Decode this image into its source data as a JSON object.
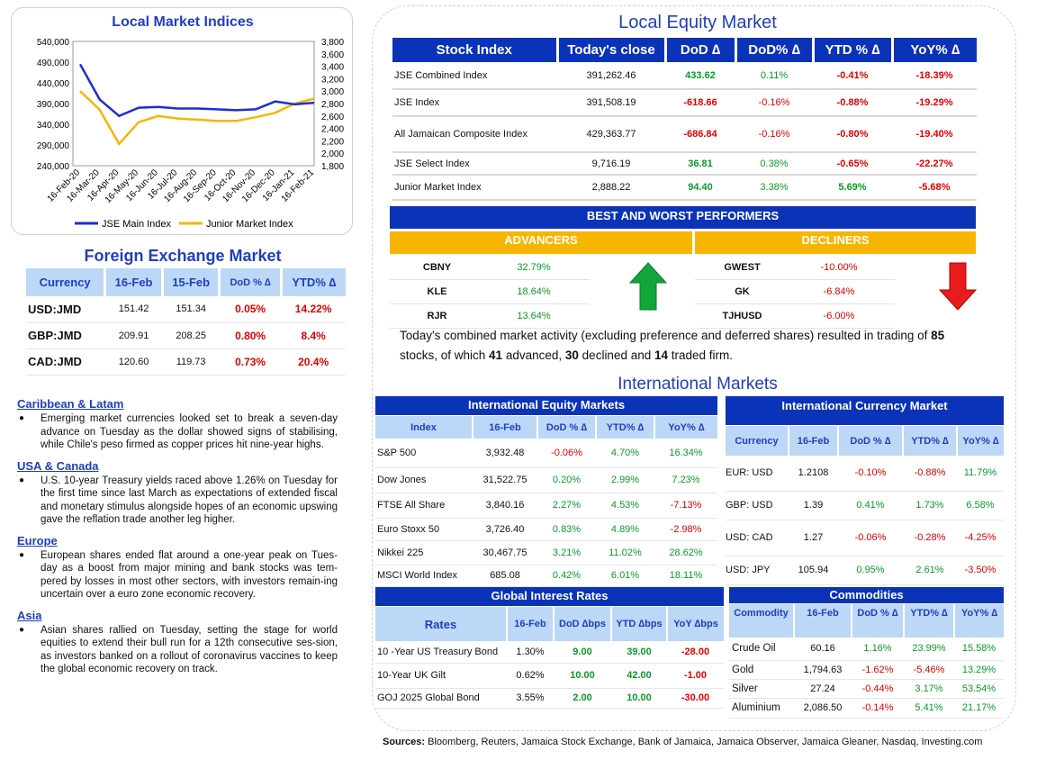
{
  "local_indices": {
    "title": "Local Market Indices",
    "left_axis": [
      "540,000",
      "490,000",
      "440,000",
      "390,000",
      "340,000",
      "290,000",
      "240,000"
    ],
    "right_axis": [
      "3,800",
      "3,600",
      "3,400",
      "3,200",
      "3,000",
      "2,800",
      "2,600",
      "2,400",
      "2,200",
      "2,000",
      "1,800"
    ],
    "x_labels": [
      "16-Feb-20",
      "16-Mar-20",
      "16-Apr-20",
      "16-May-20",
      "16-Jun-20",
      "16-Jul-20",
      "16-Aug-20",
      "16-Sep-20",
      "16-Oct-20",
      "16-Nov-20",
      "16-Dec-20",
      "16-Jan-21",
      "16-Feb-21"
    ],
    "legend_main": "JSE Main Index",
    "legend_junior": "Junior Market Index",
    "color_main": "#1a2fd6",
    "color_junior": "#f7b500"
  },
  "chart_data": {
    "type": "line",
    "x": [
      "16-Feb-20",
      "16-Mar-20",
      "16-Apr-20",
      "16-May-20",
      "16-Jun-20",
      "16-Jul-20",
      "16-Aug-20",
      "16-Sep-20",
      "16-Oct-20",
      "16-Nov-20",
      "16-Dec-20",
      "16-Jan-21",
      "16-Feb-21"
    ],
    "series": [
      {
        "name": "JSE Main Index",
        "axis": "left",
        "values": [
          485000,
          400000,
          360000,
          380000,
          382000,
          378000,
          378000,
          376000,
          374000,
          376000,
          395000,
          388000,
          392000
        ]
      },
      {
        "name": "Junior Market Index",
        "axis": "right",
        "values": [
          3000,
          2700,
          2150,
          2500,
          2600,
          2560,
          2540,
          2520,
          2520,
          2580,
          2650,
          2800,
          2880
        ]
      }
    ],
    "ylim_left": [
      240000,
      540000
    ],
    "ylim_right": [
      1800,
      3800
    ]
  },
  "fx": {
    "title": "Foreign Exchange Market",
    "headers": [
      "Currency",
      "16-Feb",
      "15-Feb",
      "DoD % ∆",
      "YTD% ∆"
    ],
    "rows": [
      [
        "USD:JMD",
        "151.42",
        "151.34",
        "0.05%",
        "14.22%"
      ],
      [
        "GBP:JMD",
        "209.91",
        "208.25",
        "0.80%",
        "8.4%"
      ],
      [
        "CAD:JMD",
        "120.60",
        "119.73",
        "0.73%",
        "20.4%"
      ]
    ]
  },
  "news": [
    {
      "heading": "Caribbean & Latam",
      "text": "Emerging market currencies looked set to break a seven-day advance on Tuesday as the dollar showed signs of stabilising, while Chile's peso firmed as copper prices hit nine-year highs."
    },
    {
      "heading": "USA & Canada",
      "text": "U.S. 10-year Treasury yields raced above 1.26% on Tuesday for the first time since last March as expectations of extended fiscal and monetary stimulus alongside hopes of an economic upswing gave the reflation trade another leg higher."
    },
    {
      "heading": "Europe",
      "text": "European shares ended flat around a one-year peak on Tues-day as a boost from major mining and bank stocks was tem-pered by losses in most other sectors, with investors remain-ing uncertain over a euro zone economic recovery."
    },
    {
      "heading": "Asia",
      "text": "Asian shares rallied on Tuesday, setting the stage for world equities to extend their bull run for a 12th consecutive ses-sion, as investors banked on a rollout of coronavirus vaccines to keep the global economic recovery on track."
    }
  ],
  "local_equity": {
    "title": "Local Equity Market",
    "headers": [
      "Stock Index",
      "Today's close",
      "DoD  ∆",
      "DoD% ∆",
      "YTD % ∆",
      "YoY% ∆"
    ],
    "rows": [
      [
        "JSE Combined Index",
        "391,262.46",
        "433.62",
        "0.11%",
        "-0.41%",
        "-18.39%"
      ],
      [
        "JSE Index",
        "391,508.19",
        "-618.66",
        "-0.16%",
        "-0.88%",
        "-19.29%"
      ],
      [
        "All Jamaican Composite Index",
        "429,363.77",
        "-686.84",
        "-0.16%",
        "-0.80%",
        "-19.40%"
      ],
      [
        "JSE Select Index",
        "9,716.19",
        "36.81",
        "0.38%",
        "-0.65%",
        "-22.27%"
      ],
      [
        "Junior Market Index",
        "2,888.22",
        "94.40",
        "3.38%",
        "5.69%",
        "-5.68%"
      ]
    ]
  },
  "performers": {
    "title": "BEST AND WORST PERFORMERS",
    "advancers_label": "ADVANCERS",
    "decliners_label": "DECLINERS",
    "advancers": [
      [
        "CBNY",
        "32.79%"
      ],
      [
        "KLE",
        "18.64%"
      ],
      [
        "RJR",
        "13.64%"
      ]
    ],
    "decliners": [
      [
        "GWEST",
        "-10.00%"
      ],
      [
        "GK",
        "-6.84%"
      ],
      [
        "TJHUSD",
        "-6.00%"
      ]
    ],
    "up_icon": "up-arrow-icon",
    "down_icon": "down-arrow-icon"
  },
  "summary": {
    "p1": "Today's combined market activity (excluding preference and deferred shares) resulted in trading of ",
    "n1": "85",
    "p2": " stocks, of which ",
    "n2": "41",
    "p3": " advanced, ",
    "n3": "30",
    "p4": " declined and ",
    "n4": "14",
    "p5": " traded firm."
  },
  "intl_title": "International Markets",
  "intl_equity": {
    "title": "International Equity Markets",
    "headers": [
      "Index",
      "16-Feb",
      "DoD % ∆",
      "YTD% ∆",
      "YoY% ∆"
    ],
    "rows": [
      [
        "S&P 500",
        "3,932.48",
        "-0.06%",
        "4.70%",
        "16.34%"
      ],
      [
        "Dow Jones",
        "31,522.75",
        "0.20%",
        "2.99%",
        "7.23%"
      ],
      [
        "FTSE All Share",
        "3,840.16",
        "2.27%",
        "4.53%",
        "-7.13%"
      ],
      [
        "Euro Stoxx 50",
        "3,726.40",
        "0.83%",
        "4.89%",
        "-2.98%"
      ],
      [
        "Nikkei 225",
        "30,467.75",
        "3.21%",
        "11.02%",
        "28.62%"
      ],
      [
        "MSCI World Index",
        "685.08",
        "0.42%",
        "6.01%",
        "18.11%"
      ]
    ]
  },
  "intl_currency": {
    "title": "International Currency Market",
    "headers": [
      "Currency",
      "16-Feb",
      "DoD % ∆",
      "YTD% ∆",
      "YoY% ∆"
    ],
    "rows": [
      [
        "EUR: USD",
        "1.2108",
        "-0.10%",
        "-0.88%",
        "11.79%"
      ],
      [
        "GBP: USD",
        "1.39",
        "0.41%",
        "1.73%",
        "6.58%"
      ],
      [
        "USD: CAD",
        "1.27",
        "-0.06%",
        "-0.28%",
        "-4.25%"
      ],
      [
        "USD: JPY",
        "105.94",
        "0.95%",
        "2.61%",
        "-3.50%"
      ]
    ]
  },
  "rates": {
    "title": "Global Interest Rates",
    "headers": [
      "Rates",
      "16-Feb",
      "DoD ∆bps",
      "YTD ∆bps",
      "YoY ∆bps"
    ],
    "rows": [
      [
        "10 -Year US Treasury Bond",
        "1.30%",
        "9.00",
        "39.00",
        "-28.00"
      ],
      [
        "10-Year UK Gilt",
        "0.62%",
        "10.00",
        "42.00",
        "-1.00"
      ],
      [
        "GOJ 2025 Global Bond",
        "3.55%",
        "2.00",
        "10.00",
        "-30.00"
      ]
    ]
  },
  "commodities": {
    "title": "Commodities",
    "headers": [
      "Commodity",
      "16-Feb",
      "DoD % ∆",
      "YTD% ∆",
      "YoY% ∆"
    ],
    "rows": [
      [
        "Crude Oil",
        "60.16",
        "1.16%",
        "23.99%",
        "15.58%"
      ],
      [
        "Gold",
        "1,794.63",
        "-1.62%",
        "-5.46%",
        "13.29%"
      ],
      [
        "Silver",
        "27.24",
        "-0.44%",
        "3.17%",
        "53.54%"
      ],
      [
        "Aluminium",
        "2,086.50",
        "-0.14%",
        "5.41%",
        "21.17%"
      ]
    ]
  },
  "sources": {
    "label": "Sources:",
    "text": " Bloomberg, Reuters, Jamaica Stock Exchange, Bank of Jamaica, Jamaica Observer, Jamaica Gleaner, Nasdaq, Investing.com"
  }
}
